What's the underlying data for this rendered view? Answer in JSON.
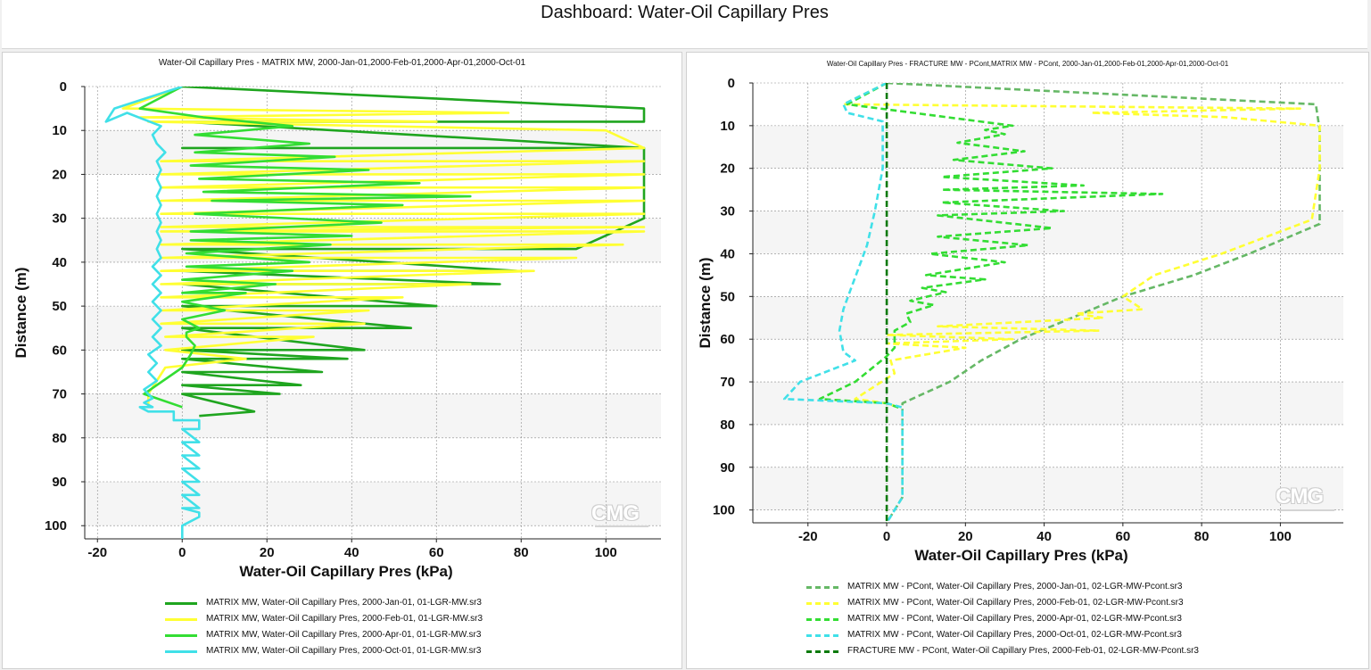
{
  "dashboard": {
    "title": "Dashboard: Water-Oil Capillary Pres"
  },
  "watermark": "CMG",
  "chart_data": [
    {
      "type": "line",
      "title": "Water-Oil Capillary Pres - MATRIX MW, 2000-Jan-01,2000-Feb-01,2000-Apr-01,2000-Oct-01",
      "xlabel": "Water-Oil Capillary Pres (kPa)",
      "ylabel": "Distance (m)",
      "xlim": [
        -23,
        113
      ],
      "ylim": [
        0,
        103
      ],
      "y_inverted": true,
      "xticks": [
        -20,
        0,
        20,
        40,
        60,
        80,
        100
      ],
      "yticks": [
        0,
        10,
        20,
        30,
        40,
        50,
        60,
        70,
        80,
        90,
        100
      ],
      "grid": true,
      "legend_position": "bottom",
      "series": [
        {
          "name": "MATRIX MW, Water-Oil Capillary Pres, 2000-Jan-01, 01-LGR-MW.sr3",
          "color": "#1fa51f",
          "dash": false,
          "x": [
            0,
            109,
            109,
            0,
            109,
            0,
            109,
            0,
            109,
            109,
            109,
            93,
            0,
            79,
            0,
            75,
            0,
            60,
            0,
            54,
            0,
            43,
            0,
            39,
            0,
            33,
            0,
            28,
            0,
            23,
            0,
            17,
            4
          ],
          "y": [
            0,
            5,
            8,
            8,
            8,
            8,
            14,
            14,
            14,
            14,
            30,
            37,
            37,
            42,
            42,
            45,
            45,
            50,
            50,
            55,
            55,
            60,
            60,
            62,
            62,
            65,
            65,
            68,
            68,
            70,
            70,
            74,
            75
          ]
        },
        {
          "name": "MATRIX MW, Water-Oil Capillary Pres, 2000-Feb-01, 01-LGR-MW.sr3",
          "color": "#ffff33",
          "dash": false,
          "x": [
            0,
            -14,
            77,
            -10,
            60,
            -8,
            100,
            109,
            -5,
            109,
            -5,
            109,
            -5,
            109,
            -5,
            109,
            -5,
            109,
            -5,
            109,
            -5,
            109,
            -5,
            104,
            -5,
            93,
            -5,
            83,
            -5,
            68,
            -5,
            52,
            -5,
            44,
            -5,
            43,
            -4,
            31,
            -4,
            15,
            -4,
            -8,
            -8
          ],
          "y": [
            0,
            5,
            6,
            7,
            8,
            8,
            10,
            14,
            17,
            17,
            20,
            20,
            23,
            23,
            26,
            26,
            29,
            29,
            32,
            32,
            33,
            33,
            36,
            36,
            39,
            39,
            42,
            42,
            45,
            45,
            48,
            48,
            51,
            51,
            54,
            54,
            57,
            57,
            60,
            62,
            64,
            70,
            73
          ]
        },
        {
          "name": "MATRIX MW, Water-Oil Capillary Pres, 2000-Apr-01, 01-LGR-MW.sr3",
          "color": "#33dd33",
          "dash": false,
          "x": [
            0,
            -10,
            5,
            26,
            3,
            30,
            3,
            36,
            2,
            44,
            4,
            56,
            5,
            68,
            7,
            52,
            3,
            47,
            2,
            40,
            2,
            35,
            1,
            30,
            1,
            26,
            0,
            22,
            0,
            15,
            0,
            10,
            0,
            4,
            1,
            1,
            3,
            2,
            0,
            -9,
            0
          ],
          "y": [
            0,
            5,
            7,
            9,
            11,
            13,
            15,
            16,
            18,
            19,
            21,
            22,
            24,
            25,
            26,
            27,
            29,
            31,
            33,
            34,
            35,
            36,
            38,
            40,
            41,
            42,
            44,
            45,
            47,
            47,
            49,
            51,
            53,
            55,
            56,
            57,
            59,
            61,
            64,
            70,
            73
          ]
        },
        {
          "name": "MATRIX MW, Water-Oil Capillary Pres, 2000-Oct-01, 01-LGR-MW.sr3",
          "color": "#40e0e8",
          "dash": false,
          "x": [
            0,
            -16,
            -18,
            -13,
            -5,
            -7,
            -6,
            -4,
            -6,
            -5,
            -6,
            -5,
            -6,
            -5,
            -6,
            -5,
            -6,
            -5,
            -6,
            -5,
            -7,
            -5,
            -7,
            -5,
            -7,
            -5,
            -7,
            -5,
            -7,
            -5,
            -8,
            -6,
            -8,
            -6,
            -9,
            -7,
            -9,
            -7,
            -10,
            -10,
            -8,
            -2,
            -2,
            4,
            4,
            0,
            4,
            0,
            4,
            0,
            4,
            0,
            4,
            0,
            4,
            0,
            4,
            0,
            4,
            4,
            0,
            0
          ],
          "y": [
            0,
            5,
            8,
            6,
            9,
            11,
            13,
            15,
            17,
            19,
            21,
            23,
            25,
            27,
            29,
            31,
            33,
            35,
            37,
            39,
            41,
            43,
            45,
            47,
            49,
            51,
            53,
            55,
            57,
            59,
            61,
            63,
            65,
            67,
            69,
            71,
            72,
            73,
            73,
            73,
            74,
            74,
            76,
            76,
            78,
            78,
            81,
            81,
            84,
            84,
            87,
            87,
            90,
            90,
            93,
            93,
            96,
            96,
            97,
            98,
            100,
            103
          ]
        }
      ]
    },
    {
      "type": "line",
      "title": "Water-Oil Capillary Pres - FRACTURE MW - PCont,MATRIX MW - PCont, 2000-Jan-01,2000-Feb-01,2000-Apr-01,2000-Oct-01",
      "xlabel": "Water-Oil Capillary Pres (kPa)",
      "ylabel": "Distance (m)",
      "xlim": [
        -34,
        116
      ],
      "ylim": [
        0,
        103
      ],
      "y_inverted": true,
      "xticks": [
        -20,
        0,
        20,
        40,
        60,
        80,
        100
      ],
      "yticks": [
        0,
        10,
        20,
        30,
        40,
        50,
        60,
        70,
        80,
        90,
        100
      ],
      "grid": true,
      "legend_position": "bottom",
      "series": [
        {
          "name": "MATRIX MW - PCont, Water-Oil Capillary Pres, 2000-Jan-01, 02-LGR-MW-Pcont.sr3",
          "color": "#66b866",
          "dash": true,
          "x": [
            0,
            109,
            110,
            110,
            110,
            92,
            78,
            60,
            47,
            34,
            24,
            16,
            4,
            4,
            4,
            0
          ],
          "y": [
            0,
            5,
            11,
            20,
            33,
            40,
            45,
            50,
            55,
            60,
            65,
            70,
            75,
            80,
            97,
            103
          ]
        },
        {
          "name": "MATRIX MW - PCont, Water-Oil Capillary Pres, 2000-Feb-01, 02-LGR-MW-Pcont.sr3",
          "color": "#ffff33",
          "dash": true,
          "x": [
            0,
            -11,
            105,
            52,
            86,
            110,
            110,
            108,
            85,
            68,
            60,
            65,
            48,
            55,
            13,
            54,
            0,
            32,
            0,
            20,
            1,
            2,
            -8,
            0,
            3
          ],
          "y": [
            0,
            5,
            6,
            7,
            8,
            10,
            20,
            32,
            40,
            45,
            50,
            53,
            54,
            55,
            57,
            58,
            59,
            60,
            61,
            62,
            65,
            68,
            74,
            75,
            76
          ]
        },
        {
          "name": "MATRIX MW - PCont, Water-Oil Capillary Pres, 2000-Apr-01, 02-LGR-MW-Pcont.sr3",
          "color": "#33dd33",
          "dash": true,
          "x": [
            0,
            -10,
            32,
            25,
            30,
            18,
            35,
            17,
            42,
            14,
            50,
            14,
            70,
            14,
            45,
            13,
            42,
            13,
            36,
            11,
            30,
            10,
            25,
            9,
            15,
            6,
            12,
            5,
            6,
            2,
            2,
            0,
            -8,
            -17,
            0,
            3
          ],
          "y": [
            0,
            5,
            10,
            11,
            12,
            14,
            16,
            18,
            20,
            22,
            24,
            25,
            26,
            28,
            30,
            31,
            34,
            36,
            38,
            40,
            42,
            45,
            46,
            48,
            49,
            51,
            52,
            54,
            56,
            58,
            62,
            64,
            70,
            74,
            75,
            76
          ]
        },
        {
          "name": "MATRIX MW - PCont, Water-Oil Capillary Pres, 2000-Oct-01, 02-LGR-MW-Pcont.sr3",
          "color": "#40e0e8",
          "dash": true,
          "x": [
            0,
            -11,
            -10,
            -1,
            -1,
            -3,
            -5,
            -7,
            -9,
            -11,
            -12,
            -11,
            -8,
            -22,
            -26,
            0,
            4,
            4,
            4,
            0
          ],
          "y": [
            0,
            5,
            7,
            9,
            20,
            30,
            38,
            43,
            48,
            53,
            58,
            63,
            65,
            70,
            74,
            75,
            76,
            80,
            97,
            103
          ]
        },
        {
          "name": "FRACTURE MW - PCont, Water-Oil Capillary Pres, 2000-Feb-01, 02-LGR-MW-Pcont.sr3",
          "color": "#0c7a0c",
          "dash": true,
          "x": [
            0,
            0
          ],
          "y": [
            0,
            103
          ]
        }
      ]
    }
  ]
}
